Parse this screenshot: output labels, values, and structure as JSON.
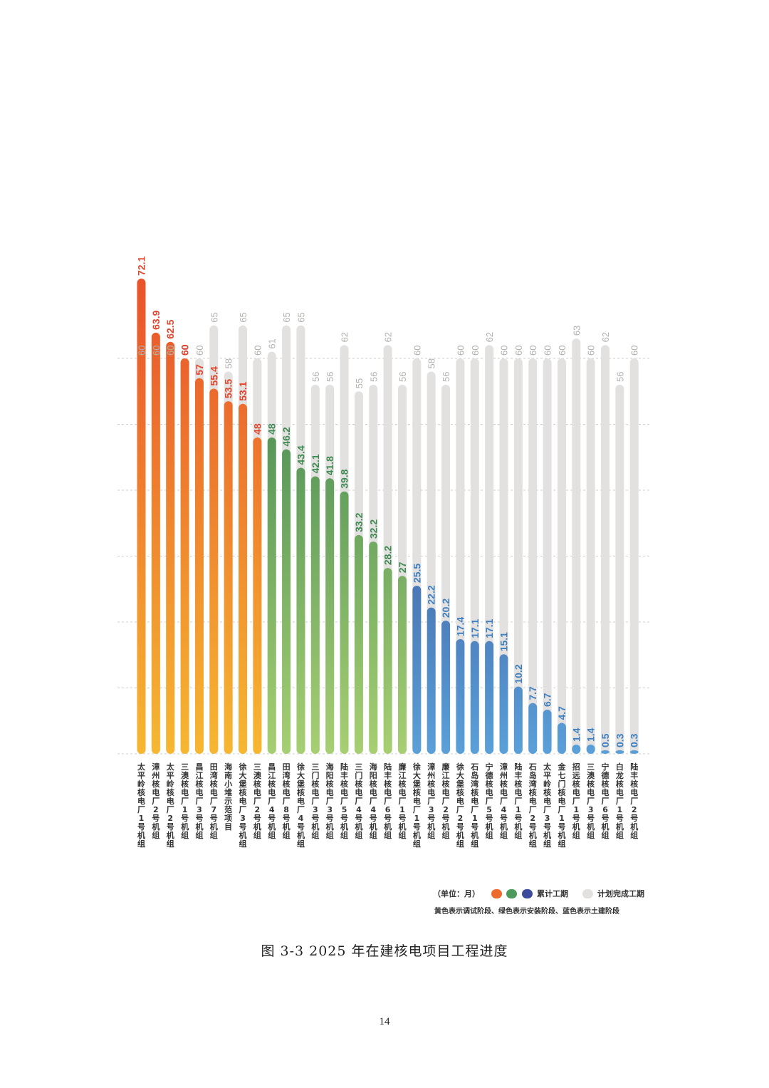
{
  "chart_data": {
    "type": "bar",
    "categories": [
      "太平岭核电厂1号机组",
      "漳州核电厂2号机组",
      "太平岭核电厂2号机组",
      "三澳核电厂1号机组",
      "昌江核电厂3号机组",
      "田湾核电厂7号机组",
      "海南小堆示范项目",
      "徐大堡核电厂3号机组",
      "三澳核电厂2号机组",
      "昌江核电厂4号机组",
      "田湾核电厂8号机组",
      "徐大堡核电厂4号机组",
      "三门核电厂3号机组",
      "海阳核电厂3号机组",
      "陆丰核电厂5号机组",
      "三门核电厂4号机组",
      "海阳核电厂4号机组",
      "陆丰核电厂6号机组",
      "廉江核电厂1号机组",
      "徐大堡核电厂1号机组",
      "漳州核电厂3号机组",
      "廉江核电厂2号机组",
      "徐大堡核电厂2号机组",
      "石岛湾核电厂1号机组",
      "宁德核电厂5号机组",
      "漳州核电厂4号机组",
      "陆丰核电厂1号机组",
      "石岛湾核电厂2号机组",
      "太平岭核电厂3号机组",
      "金七门核电厂1号机组",
      "招远核电厂1号机组",
      "三澳核电厂3号机组",
      "宁德核电厂6号机组",
      "白龙核电厂1号机组",
      "陆丰核电厂2号机组"
    ],
    "series": [
      {
        "name": "累计工期",
        "values": [
          72.1,
          63.9,
          62.5,
          60,
          57,
          55.4,
          53.5,
          53.1,
          48,
          48,
          46.2,
          43.4,
          42.1,
          41.8,
          39.8,
          33.2,
          32.2,
          28.2,
          27,
          25.5,
          22.2,
          20.2,
          17.4,
          17.1,
          17.1,
          15.1,
          10.2,
          7.7,
          6.7,
          4.7,
          1.4,
          1.4,
          0.5,
          0.3,
          0.3
        ]
      },
      {
        "name": "计划完成工期",
        "values": [
          60,
          60,
          60,
          60,
          60,
          65,
          58,
          65,
          60,
          61,
          65,
          65,
          56,
          56,
          62,
          55,
          56,
          62,
          56,
          60,
          58,
          56,
          60,
          60,
          62,
          60,
          60,
          60,
          60,
          60,
          63,
          60,
          62,
          56,
          60
        ]
      }
    ],
    "phase": [
      "yellow",
      "yellow",
      "yellow",
      "yellow",
      "yellow",
      "yellow",
      "yellow",
      "yellow",
      "yellow",
      "green",
      "green",
      "green",
      "green",
      "green",
      "green",
      "green",
      "green",
      "green",
      "green",
      "blue",
      "blue",
      "blue",
      "blue",
      "blue",
      "blue",
      "blue",
      "blue",
      "blue",
      "blue",
      "blue",
      "blue",
      "blue",
      "blue",
      "blue",
      "blue"
    ],
    "ylim": [
      0,
      72.1
    ],
    "grid": true,
    "xlabel": "",
    "ylabel": ""
  },
  "colors": {
    "orange_top": "#e8522c",
    "orange_bottom": "#f6b731",
    "green_top": "#2f7a4d",
    "green_bottom": "#a7cf72",
    "blue_top": "#2e2e7a",
    "blue_bottom": "#5aa0d8",
    "plan": "#e3e1df",
    "plan_text": "#b3b1ae",
    "label_orange": "#e2452d",
    "label_green": "#3f8a52",
    "label_blue": "#3e7fc0"
  },
  "legend": {
    "unit": "（单位：月）",
    "accum": "累计工期",
    "plan": "计划完成工期",
    "note": "黄色表示调试阶段、绿色表示安装阶段、蓝色表示土建阶段"
  },
  "caption": "图 3-3 2025 年在建核电项目工程进度",
  "page_number": "14"
}
